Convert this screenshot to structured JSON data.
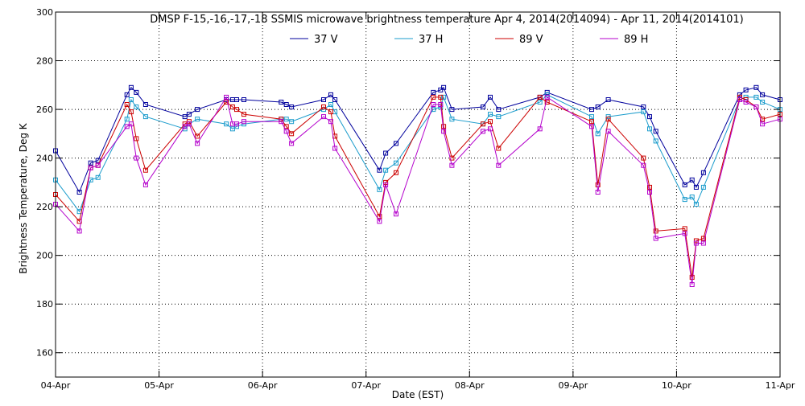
{
  "chart_data": {
    "type": "line",
    "title": "DMSP F-15,-16,-17,-18 SSMIS microwave brightness temperature Apr  4, 2014(2014094) - Apr 11, 2014(2014101)",
    "xlabel": "Date (EST)",
    "ylabel": "Brightness Temperature, Deg K",
    "ylim": [
      150,
      300
    ],
    "xlim": [
      0,
      7
    ],
    "grid": true,
    "legend_position": "top",
    "x_ticks": [
      {
        "value": 0,
        "label": "04-Apr"
      },
      {
        "value": 1,
        "label": "05-Apr"
      },
      {
        "value": 2,
        "label": "06-Apr"
      },
      {
        "value": 3,
        "label": "07-Apr"
      },
      {
        "value": 4,
        "label": "08-Apr"
      },
      {
        "value": 5,
        "label": "09-Apr"
      },
      {
        "value": 6,
        "label": "10-Apr"
      },
      {
        "value": 7,
        "label": "11-Apr"
      }
    ],
    "y_ticks": [
      {
        "value": 160,
        "label": "160"
      },
      {
        "value": 180,
        "label": "180"
      },
      {
        "value": 200,
        "label": "200"
      },
      {
        "value": 220,
        "label": "220"
      },
      {
        "value": 240,
        "label": "240"
      },
      {
        "value": 260,
        "label": "260"
      },
      {
        "value": 280,
        "label": "280"
      },
      {
        "value": 300,
        "label": "300"
      }
    ],
    "x_unit": "days since 04-Apr 00:00 EST",
    "x": [
      0.0,
      0.23,
      0.34,
      0.41,
      0.69,
      0.73,
      0.78,
      0.87,
      1.25,
      1.29,
      1.37,
      1.65,
      1.71,
      1.75,
      1.82,
      2.18,
      2.23,
      2.28,
      2.59,
      2.66,
      2.7,
      3.13,
      3.19,
      3.29,
      3.65,
      3.72,
      3.75,
      3.83,
      4.13,
      4.2,
      4.28,
      4.68,
      4.75,
      5.18,
      5.24,
      5.34,
      5.68,
      5.74,
      5.8,
      6.08,
      6.15,
      6.19,
      6.26,
      6.61,
      6.67,
      6.77,
      6.83,
      7.0
    ],
    "series": [
      {
        "name": "37 V",
        "color": "#00009c",
        "values": [
          243,
          226,
          238,
          239,
          266,
          269,
          267,
          262,
          257,
          258,
          260,
          264,
          264,
          264,
          264,
          263,
          262,
          261,
          264,
          266,
          264,
          235,
          242,
          246,
          267,
          268,
          269,
          260,
          261,
          265,
          260,
          265,
          267,
          260,
          261,
          264,
          261,
          257,
          251,
          229,
          231,
          228,
          234,
          266,
          268,
          269,
          266,
          264
        ]
      },
      {
        "name": "37 H",
        "color": "#1b9ccc",
        "values": [
          231,
          218,
          231,
          232,
          256,
          264,
          261,
          257,
          252,
          254,
          256,
          254,
          252,
          253,
          254,
          256,
          256,
          255,
          260,
          262,
          259,
          227,
          235,
          238,
          260,
          261,
          265,
          256,
          254,
          258,
          257,
          263,
          266,
          257,
          250,
          257,
          259,
          252,
          247,
          223,
          224,
          221,
          228,
          264,
          265,
          265,
          263,
          260
        ]
      },
      {
        "name": "89 V",
        "color": "#cc0000",
        "values": [
          225,
          214,
          236,
          237,
          262,
          259,
          248,
          235,
          254,
          255,
          249,
          263,
          261,
          260,
          258,
          256,
          253,
          250,
          261,
          259,
          249,
          216,
          230,
          234,
          265,
          265,
          253,
          240,
          254,
          255,
          244,
          265,
          263,
          255,
          229,
          256,
          240,
          228,
          210,
          211,
          191,
          206,
          207,
          265,
          264,
          261,
          256,
          258
        ]
      },
      {
        "name": "89 H",
        "color": "#b400cc",
        "values": [
          221,
          210,
          236,
          237,
          253,
          254,
          240,
          229,
          253,
          254,
          246,
          265,
          254,
          254,
          255,
          255,
          251,
          246,
          257,
          255,
          244,
          214,
          229,
          217,
          262,
          262,
          251,
          237,
          251,
          252,
          237,
          252,
          265,
          253,
          226,
          251,
          237,
          226,
          207,
          209,
          188,
          205,
          205,
          264,
          263,
          261,
          254,
          256
        ]
      }
    ]
  }
}
